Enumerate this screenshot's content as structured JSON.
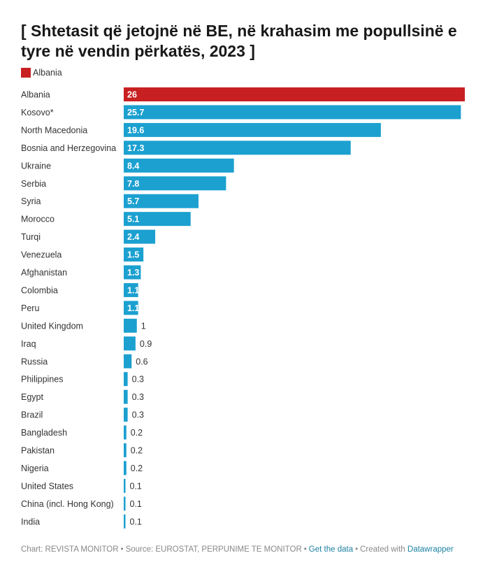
{
  "title": "[ Shtetasit që jetojnë në BE, në krahasim me popullsinë e tyre në vendin përkatës, 2023 ]",
  "legend": {
    "label": "Albania",
    "color": "#c82022"
  },
  "colors": {
    "highlight": "#c82022",
    "default": "#1ba0d0"
  },
  "chart_data": {
    "type": "bar",
    "orientation": "horizontal",
    "title": "[ Shtetasit që jetojnë në BE, në krahasim me popullsinë e tyre në vendin përkatës, 2023 ]",
    "categories": [
      "Albania",
      "Kosovo*",
      "North Macedonia",
      "Bosnia and Herzegovina",
      "Ukraine",
      "Serbia",
      "Syria",
      "Morocco",
      "Turqi",
      "Venezuela",
      "Afghanistan",
      "Colombia",
      "Peru",
      "United Kingdom",
      "Iraq",
      "Russia",
      "Philippines",
      "Egypt",
      "Brazil",
      "Bangladesh",
      "Pakistan",
      "Nigeria",
      "United States",
      "China (incl. Hong Kong)",
      "India"
    ],
    "values": [
      26,
      25.7,
      19.6,
      17.3,
      8.4,
      7.8,
      5.7,
      5.1,
      2.4,
      1.5,
      1.3,
      1.1,
      1.1,
      1,
      0.9,
      0.6,
      0.3,
      0.3,
      0.3,
      0.2,
      0.2,
      0.2,
      0.1,
      0.1,
      0.1
    ],
    "highlight": "Albania",
    "xlim": [
      0,
      26
    ],
    "grid": false,
    "legend_position": "top-left"
  },
  "footer": {
    "chart": "Chart: REVISTA MONITOR",
    "source": "Source: EUROSTAT, PERPUNIME TE MONITOR",
    "get_data": "Get the data",
    "created_with": "Created with",
    "tool": "Datawrapper"
  }
}
